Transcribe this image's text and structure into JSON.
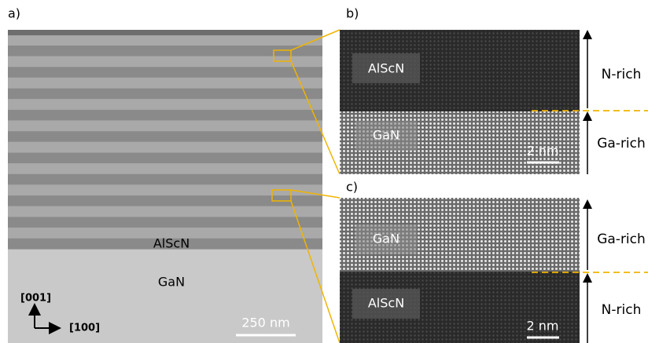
{
  "panels": {
    "a": {
      "label": "a)",
      "layer_top": "AlScN",
      "layer_bottom": "GaN",
      "scale_bar": "250 nm",
      "axis_vertical": "[001]",
      "axis_horizontal": "[100]"
    },
    "b": {
      "label": "b)",
      "top_label": "AlScN",
      "bottom_label": "GaN",
      "scale_bar": "2 nm",
      "region_top": "N-rich",
      "region_bottom": "Ga-rich"
    },
    "c": {
      "label": "c)",
      "top_label": "GaN",
      "bottom_label": "AlScN",
      "scale_bar": "2 nm",
      "region_top": "Ga-rich",
      "region_bottom": "N-rich"
    }
  }
}
